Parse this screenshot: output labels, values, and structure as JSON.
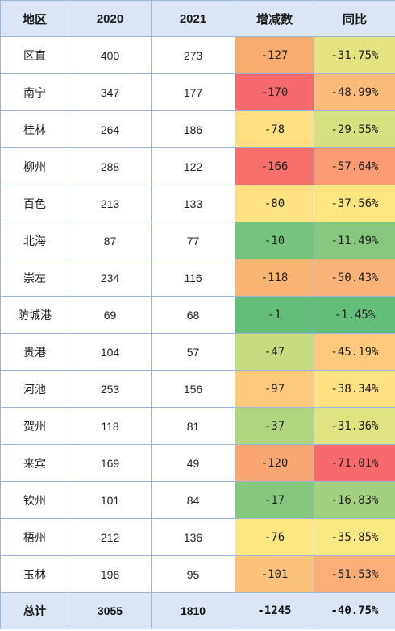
{
  "headers": [
    "地区",
    "2020",
    "2021",
    "增减数",
    "同比"
  ],
  "rows": [
    {
      "region": "区直",
      "y2020": "400",
      "y2021": "273",
      "change": "-127",
      "ratio": "-31.75%",
      "change_color": "#f8ab6f",
      "ratio_color": "#e3e382"
    },
    {
      "region": "南宁",
      "y2020": "347",
      "y2021": "177",
      "change": "-170",
      "ratio": "-48.99%",
      "change_color": "#f8696b",
      "ratio_color": "#fcbb7b"
    },
    {
      "region": "桂林",
      "y2020": "264",
      "y2021": "186",
      "change": "-78",
      "ratio": "-29.55%",
      "change_color": "#fee082",
      "ratio_color": "#d6e081"
    },
    {
      "region": "柳州",
      "y2020": "288",
      "y2021": "122",
      "change": "-166",
      "ratio": "-57.64%",
      "change_color": "#f8706c",
      "ratio_color": "#fa9b74"
    },
    {
      "region": "百色",
      "y2020": "213",
      "y2021": "133",
      "change": "-80",
      "ratio": "-37.56%",
      "change_color": "#fee182",
      "ratio_color": "#fde682"
    },
    {
      "region": "北海",
      "y2020": "87",
      "y2021": "77",
      "change": "-10",
      "ratio": "-11.49%",
      "change_color": "#75c47d",
      "ratio_color": "#86c97e"
    },
    {
      "region": "崇左",
      "y2020": "234",
      "y2021": "116",
      "change": "-118",
      "ratio": "-50.43%",
      "change_color": "#fab473",
      "ratio_color": "#fbb379"
    },
    {
      "region": "防城港",
      "y2020": "69",
      "y2021": "68",
      "change": "-1",
      "ratio": "-1.45%",
      "change_color": "#63be7b",
      "ratio_color": "#63be7b"
    },
    {
      "region": "贵港",
      "y2020": "104",
      "y2021": "57",
      "change": "-47",
      "ratio": "-45.19%",
      "change_color": "#c6db80",
      "ratio_color": "#fdca7d"
    },
    {
      "region": "河池",
      "y2020": "253",
      "y2021": "156",
      "change": "-97",
      "ratio": "-38.34%",
      "change_color": "#fdc97d",
      "ratio_color": "#fee182"
    },
    {
      "region": "贺州",
      "y2020": "118",
      "y2021": "81",
      "change": "-37",
      "ratio": "-31.36%",
      "change_color": "#b1d47f",
      "ratio_color": "#e0e382"
    },
    {
      "region": "来宾",
      "y2020": "169",
      "y2021": "49",
      "change": "-120",
      "ratio": "-71.01%",
      "change_color": "#f9a672",
      "ratio_color": "#f8696b"
    },
    {
      "region": "钦州",
      "y2020": "101",
      "y2021": "84",
      "change": "-17",
      "ratio": "-16.83%",
      "change_color": "#84c87d",
      "ratio_color": "#a3d07f"
    },
    {
      "region": "梧州",
      "y2020": "212",
      "y2021": "136",
      "change": "-76",
      "ratio": "-35.85%",
      "change_color": "#fee683",
      "ratio_color": "#f6e883"
    },
    {
      "region": "玉林",
      "y2020": "196",
      "y2021": "95",
      "change": "-101",
      "ratio": "-51.53%",
      "change_color": "#fcc17b",
      "ratio_color": "#fbae78"
    }
  ],
  "total": {
    "region": "总计",
    "y2020": "3055",
    "y2021": "1810",
    "change": "-1245",
    "ratio": "-40.75%"
  }
}
